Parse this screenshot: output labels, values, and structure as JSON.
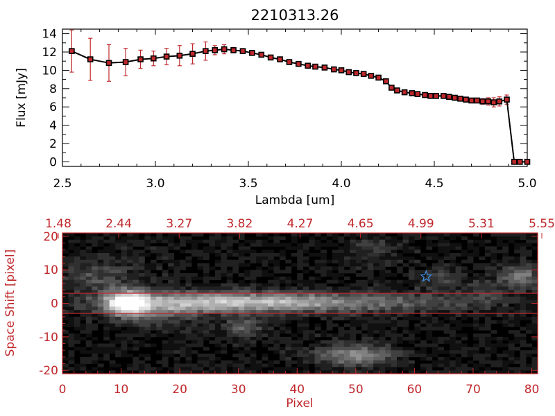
{
  "chart_data": [
    {
      "type": "line",
      "title": "2210313.26",
      "xlabel": "Lambda [um]",
      "ylabel": "Flux [mJy]",
      "xlim": [
        2.5,
        5.0
      ],
      "ylim": [
        -0.5,
        14.5
      ],
      "xticks": [
        "2.5",
        "3.0",
        "3.5",
        "4.0",
        "4.5",
        "5.0"
      ],
      "yticks": [
        "0",
        "2",
        "4",
        "6",
        "8",
        "10",
        "12",
        "14"
      ],
      "grid": false,
      "line_color": "#000000",
      "marker_color": "#c0282c",
      "error_color": "#c0282c",
      "series": [
        {
          "x": [
            2.55,
            2.65,
            2.75,
            2.84,
            2.92,
            2.99,
            3.06,
            3.13,
            3.2,
            3.27,
            3.32,
            3.37,
            3.42,
            3.47,
            3.52,
            3.57,
            3.62,
            3.67,
            3.72,
            3.77,
            3.82,
            3.86,
            3.91,
            3.96,
            4.0,
            4.04,
            4.08,
            4.12,
            4.16,
            4.2,
            4.24,
            4.27,
            4.3,
            4.34,
            4.38,
            4.41,
            4.45,
            4.48,
            4.51,
            4.55,
            4.58,
            4.61,
            4.64,
            4.67,
            4.7,
            4.73,
            4.76,
            4.79,
            4.82,
            4.85,
            4.89,
            4.93,
            4.96,
            5.0
          ],
          "y": [
            12.1,
            11.2,
            10.8,
            10.9,
            11.2,
            11.3,
            11.5,
            11.6,
            11.8,
            12.1,
            12.2,
            12.3,
            12.2,
            12.1,
            11.9,
            11.7,
            11.4,
            11.2,
            10.9,
            10.7,
            10.5,
            10.4,
            10.3,
            10.1,
            10.0,
            9.8,
            9.7,
            9.6,
            9.4,
            9.2,
            8.8,
            8.1,
            7.8,
            7.6,
            7.5,
            7.4,
            7.3,
            7.2,
            7.2,
            7.2,
            7.1,
            7.0,
            6.9,
            6.8,
            6.7,
            6.7,
            6.6,
            6.6,
            6.5,
            6.6,
            6.8,
            0.0,
            0.0,
            0.0
          ],
          "yerr": [
            2.3,
            2.3,
            2.0,
            1.5,
            1.0,
            0.8,
            0.9,
            1.1,
            1.1,
            1.0,
            0.5,
            0.5,
            0.3,
            0.2,
            0.2,
            0.2,
            0.2,
            0.2,
            0.2,
            0.2,
            0.2,
            0.2,
            0.2,
            0.2,
            0.2,
            0.2,
            0.2,
            0.2,
            0.2,
            0.2,
            0.2,
            0.2,
            0.2,
            0.2,
            0.2,
            0.2,
            0.2,
            0.2,
            0.2,
            0.2,
            0.2,
            0.2,
            0.2,
            0.2,
            0.2,
            0.2,
            0.3,
            0.4,
            0.5,
            0.5,
            0.5,
            0.0,
            0.0,
            0.0
          ]
        }
      ]
    },
    {
      "type": "heatmap",
      "xlabel": "Pixel",
      "ylabel": "Space Shift [pixel]",
      "xlim": [
        0,
        81
      ],
      "ylim": [
        -21,
        21
      ],
      "xticks": [
        "0",
        "10",
        "20",
        "30",
        "40",
        "50",
        "60",
        "70",
        "80"
      ],
      "yticks": [
        "-20",
        "-10",
        "0",
        "10",
        "20"
      ],
      "top_axis_ticks": [
        "1.48",
        "2.44",
        "3.27",
        "3.82",
        "4.27",
        "4.65",
        "4.99",
        "5.31",
        "5.55"
      ],
      "axis_color": "#c0282c",
      "colormap": "grayscale",
      "aperture_lines_y": [
        3,
        -3
      ],
      "aperture_line_color": "#c0282c",
      "marker": {
        "symbol": "star",
        "x": 62,
        "y": 8,
        "color": "#3d8fe0"
      },
      "sources": [
        {
          "x": 11,
          "y": 0,
          "amplitude": 235,
          "sigma_x": 2.5,
          "sigma_y": 2.6
        },
        {
          "x": 24,
          "y": 0.3,
          "amplitude": 150,
          "sigma_x": 12,
          "sigma_y": 2.2
        },
        {
          "x": 42,
          "y": 0.3,
          "amplitude": 95,
          "sigma_x": 11,
          "sigma_y": 2.0
        },
        {
          "x": 60,
          "y": 0.3,
          "amplitude": 45,
          "sigma_x": 9,
          "sigma_y": 1.9
        },
        {
          "x": 31,
          "y": -7,
          "amplitude": 85,
          "sigma_x": 2.2,
          "sigma_y": 2.0
        },
        {
          "x": 50,
          "y": -15.5,
          "amplitude": 120,
          "sigma_x": 4.5,
          "sigma_y": 2.2
        },
        {
          "x": 78,
          "y": 8,
          "amplitude": 110,
          "sigma_x": 2.2,
          "sigma_y": 2.4
        },
        {
          "x": 64,
          "y": 7,
          "amplitude": 50,
          "sigma_x": 2.5,
          "sigma_y": 2.4
        },
        {
          "x": 6,
          "y": 8,
          "amplitude": 55,
          "sigma_x": 5,
          "sigma_y": 3.5
        },
        {
          "x": 17,
          "y": -3,
          "amplitude": 55,
          "sigma_x": 4,
          "sigma_y": 3
        },
        {
          "x": 53,
          "y": 16,
          "amplitude": 40,
          "sigma_x": 3,
          "sigma_y": 3
        },
        {
          "x": 72,
          "y": 3,
          "amplitude": 35,
          "sigma_x": 3,
          "sigma_y": 3
        }
      ]
    }
  ]
}
